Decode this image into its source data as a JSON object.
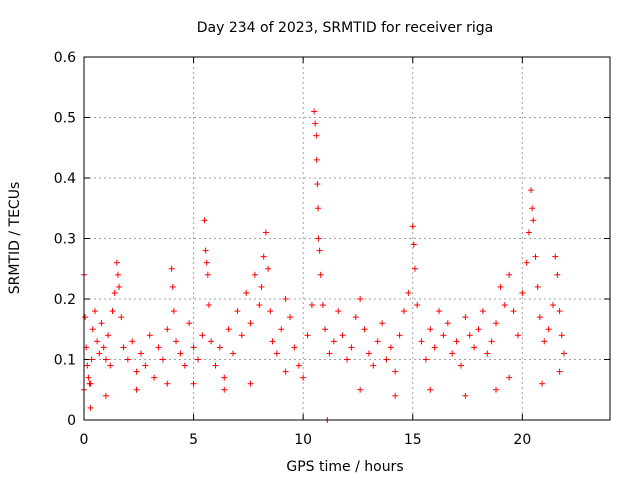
{
  "chart_data": {
    "type": "scatter",
    "title": "Day 234 of 2023, SRMTID for receiver riga",
    "xlabel": "GPS time / hours",
    "ylabel": "SRMTID / TECUs",
    "xlim": [
      0,
      24
    ],
    "ylim": [
      0,
      0.6
    ],
    "xticks": [
      0,
      5,
      10,
      15,
      20
    ],
    "xtick_labels": [
      "0",
      "5",
      "10",
      "15",
      "20"
    ],
    "yticks": [
      0,
      0.1,
      0.2,
      0.3,
      0.4,
      0.5,
      0.6
    ],
    "ytick_labels": [
      "0",
      "0.1",
      "0.2",
      "0.3",
      "0.4",
      "0.5",
      "0.6"
    ],
    "grid": true,
    "marker": "plus",
    "series": [
      {
        "name": "SRMTID",
        "color": "#ff0000",
        "x": [
          0.0,
          0.05,
          0.1,
          0.15,
          0.2,
          0.25,
          0.3,
          0.35,
          0.4,
          0.5,
          0.6,
          0.7,
          0.8,
          0.9,
          1.0,
          1.1,
          1.2,
          1.3,
          1.4,
          1.5,
          1.55,
          1.6,
          1.7,
          1.8,
          2.0,
          2.2,
          2.4,
          2.6,
          2.8,
          3.0,
          3.2,
          3.4,
          3.6,
          3.8,
          4.0,
          4.05,
          4.1,
          4.2,
          4.4,
          4.6,
          4.8,
          5.0,
          5.2,
          5.4,
          5.5,
          5.55,
          5.6,
          5.65,
          5.7,
          5.8,
          6.0,
          6.2,
          6.4,
          6.6,
          6.8,
          7.0,
          7.2,
          7.4,
          7.6,
          7.8,
          8.0,
          8.1,
          8.2,
          8.3,
          8.4,
          8.5,
          8.6,
          8.8,
          9.0,
          9.2,
          9.4,
          9.6,
          9.8,
          10.0,
          10.2,
          10.4,
          10.5,
          10.55,
          10.6,
          10.62,
          10.65,
          10.68,
          10.7,
          10.75,
          10.8,
          10.9,
          11.0,
          11.2,
          11.4,
          11.6,
          11.8,
          12.0,
          12.2,
          12.4,
          12.6,
          12.8,
          13.0,
          13.2,
          13.4,
          13.6,
          13.8,
          14.0,
          14.2,
          14.4,
          14.6,
          14.8,
          15.0,
          15.05,
          15.1,
          15.2,
          15.4,
          15.6,
          15.8,
          16.0,
          16.2,
          16.4,
          16.6,
          16.8,
          17.0,
          17.2,
          17.4,
          17.6,
          17.8,
          18.0,
          18.2,
          18.4,
          18.6,
          18.8,
          19.0,
          19.2,
          19.4,
          19.6,
          19.8,
          20.0,
          20.2,
          20.3,
          20.4,
          20.45,
          20.5,
          20.6,
          20.7,
          20.8,
          21.0,
          21.2,
          21.4,
          21.5,
          21.6,
          21.7,
          21.8,
          21.9,
          0.0,
          0.3,
          1.0,
          2.4,
          3.8,
          5.0,
          6.4,
          7.6,
          9.2,
          11.1,
          12.6,
          14.2,
          15.8,
          17.4,
          18.8,
          19.4,
          20.9,
          21.7
        ],
        "y": [
          0.24,
          0.17,
          0.12,
          0.09,
          0.07,
          0.06,
          0.02,
          0.1,
          0.15,
          0.18,
          0.13,
          0.11,
          0.16,
          0.12,
          0.1,
          0.14,
          0.09,
          0.18,
          0.21,
          0.26,
          0.24,
          0.22,
          0.17,
          0.12,
          0.1,
          0.13,
          0.08,
          0.11,
          0.09,
          0.14,
          0.07,
          0.12,
          0.1,
          0.15,
          0.25,
          0.22,
          0.18,
          0.13,
          0.11,
          0.09,
          0.16,
          0.12,
          0.1,
          0.14,
          0.33,
          0.28,
          0.26,
          0.24,
          0.19,
          0.13,
          0.09,
          0.12,
          0.07,
          0.15,
          0.11,
          0.18,
          0.14,
          0.21,
          0.16,
          0.24,
          0.19,
          0.22,
          0.27,
          0.31,
          0.25,
          0.18,
          0.13,
          0.11,
          0.15,
          0.2,
          0.17,
          0.12,
          0.09,
          0.07,
          0.14,
          0.19,
          0.51,
          0.49,
          0.47,
          0.43,
          0.39,
          0.35,
          0.3,
          0.28,
          0.24,
          0.19,
          0.15,
          0.11,
          0.13,
          0.18,
          0.14,
          0.1,
          0.12,
          0.17,
          0.2,
          0.15,
          0.11,
          0.09,
          0.13,
          0.16,
          0.1,
          0.12,
          0.08,
          0.14,
          0.18,
          0.21,
          0.32,
          0.29,
          0.25,
          0.19,
          0.13,
          0.1,
          0.15,
          0.12,
          0.18,
          0.14,
          0.16,
          0.11,
          0.13,
          0.09,
          0.17,
          0.14,
          0.12,
          0.15,
          0.18,
          0.11,
          0.13,
          0.16,
          0.22,
          0.19,
          0.24,
          0.18,
          0.14,
          0.21,
          0.26,
          0.31,
          0.38,
          0.35,
          0.33,
          0.27,
          0.22,
          0.17,
          0.13,
          0.15,
          0.19,
          0.27,
          0.24,
          0.18,
          0.14,
          0.11,
          0.05,
          0.06,
          0.04,
          0.05,
          0.06,
          0.06,
          0.05,
          0.06,
          0.08,
          0.0,
          0.05,
          0.04,
          0.05,
          0.04,
          0.05,
          0.07,
          0.06,
          0.08
        ]
      }
    ]
  }
}
